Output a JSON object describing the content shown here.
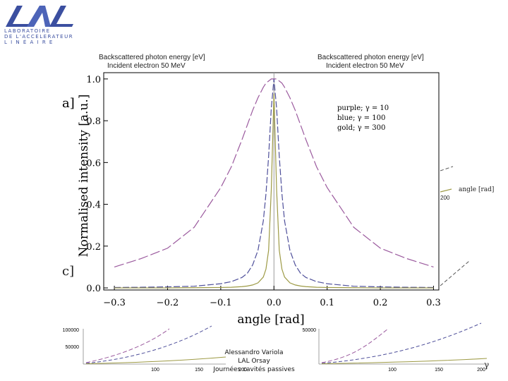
{
  "logo": {
    "acronym": "LAL",
    "line1": "LABORATOIRE",
    "line2": "DE L'ACCELERATEUR",
    "line3": "L I N É A I R E"
  },
  "background": {
    "left_title": "Backscattered photon energy [eV]",
    "left_subtitle": "Incident electron 50 MeV",
    "right_title": "Backscattered photon energy [eV]",
    "right_subtitle": "Incident electron 50 MeV",
    "panel_label_c": "c]",
    "right_axis_label": "angle [rad]",
    "right_tick": "200",
    "gamma_symbol": "γ"
  },
  "bottom_charts": {
    "left_ticks": [
      "100000",
      "50000",
      "100",
      "150",
      "200"
    ],
    "right_ticks": [
      "50000",
      "100",
      "150",
      "200"
    ]
  },
  "footer": {
    "author": "Alessandro Variola",
    "institution": "LAL Orsay",
    "event": "Journées cavités passives"
  },
  "colors": {
    "purple": "#9b5a9e",
    "blue": "#4e4f9a",
    "gold": "#9d9a45",
    "axis": "#000000",
    "zero_line": "#9a9a9a"
  },
  "chart_data": {
    "type": "line",
    "title": "",
    "panel_label": "a]",
    "xlabel": "angle [rad]",
    "ylabel": "Normalised intensity [a.u.]",
    "xlim": [
      -0.32,
      0.31
    ],
    "ylim": [
      -0.01,
      1.03
    ],
    "xticks": [
      -0.3,
      -0.2,
      -0.1,
      0.0,
      0.1,
      0.2,
      0.3
    ],
    "xtick_labels": [
      "−0.3",
      "−0.2",
      "−0.1",
      "0.0",
      "0.1",
      "0.2",
      "0.3"
    ],
    "yticks": [
      0.0,
      0.2,
      0.4,
      0.6,
      0.8,
      1.0
    ],
    "ytick_labels": [
      "0.0",
      "0.2",
      "0.4",
      "0.6",
      "0.8",
      "1.0"
    ],
    "legend": {
      "placement": "top-right",
      "entries": [
        "purple; γ = 10",
        "blue; γ = 100",
        "gold; γ = 300"
      ]
    },
    "x": [
      -0.3,
      -0.25,
      -0.2,
      -0.15,
      -0.1,
      -0.08,
      -0.06,
      -0.05,
      -0.04,
      -0.03,
      -0.02,
      -0.015,
      -0.01,
      -0.005,
      0.0,
      0.005,
      0.01,
      0.015,
      0.02,
      0.03,
      0.04,
      0.05,
      0.06,
      0.08,
      0.1,
      0.15,
      0.2,
      0.25,
      0.3
    ],
    "series": [
      {
        "name": "γ = 10",
        "color": "purple",
        "dash": "long",
        "values": [
          0.1,
          0.14,
          0.19,
          0.29,
          0.48,
          0.58,
          0.71,
          0.78,
          0.85,
          0.91,
          0.96,
          0.98,
          0.99,
          1.0,
          1.0,
          1.0,
          0.99,
          0.98,
          0.96,
          0.91,
          0.85,
          0.78,
          0.71,
          0.58,
          0.48,
          0.29,
          0.19,
          0.14,
          0.1
        ]
      },
      {
        "name": "γ = 100",
        "color": "blue",
        "dash": "medium",
        "values": [
          0.002,
          0.003,
          0.005,
          0.008,
          0.02,
          0.03,
          0.05,
          0.07,
          0.11,
          0.18,
          0.32,
          0.45,
          0.63,
          0.86,
          1.0,
          0.86,
          0.63,
          0.45,
          0.32,
          0.18,
          0.11,
          0.07,
          0.05,
          0.03,
          0.02,
          0.008,
          0.005,
          0.003,
          0.002
        ]
      },
      {
        "name": "γ = 300",
        "color": "gold",
        "dash": "solid",
        "values": [
          0.0,
          0.0,
          0.0,
          0.001,
          0.002,
          0.003,
          0.006,
          0.009,
          0.014,
          0.024,
          0.052,
          0.09,
          0.18,
          0.47,
          0.93,
          0.47,
          0.18,
          0.09,
          0.052,
          0.024,
          0.014,
          0.009,
          0.006,
          0.003,
          0.002,
          0.001,
          0.0,
          0.0,
          0.0
        ]
      }
    ]
  }
}
